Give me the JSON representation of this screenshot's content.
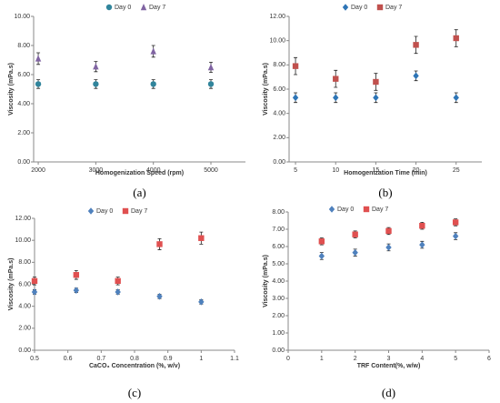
{
  "chart_data": [
    {
      "type": "scatter",
      "caption": "(a)",
      "x_label": "Homogenization Speed (rpm)",
      "y_label": "Viscosity (mPa.s)",
      "legend": "top",
      "grid": false,
      "x": [
        2000,
        3000,
        4000,
        5000
      ],
      "xlim": [
        1920,
        5600
      ],
      "xticks": [
        2000,
        3000,
        4000,
        5000
      ],
      "ylim": [
        0,
        10
      ],
      "yticks": [
        {
          "value": 0,
          "label": "0.00"
        },
        {
          "value": 2,
          "label": "2.00"
        },
        {
          "value": 4,
          "label": "4.00"
        },
        {
          "value": 6,
          "label": "6.00"
        },
        {
          "value": 8,
          "label": "8.00"
        },
        {
          "value": 10,
          "label": "10.00"
        }
      ],
      "series": [
        {
          "name": "Day 0",
          "color": "#31859c",
          "marker": "circle",
          "values": [
            5.35,
            5.35,
            5.35,
            5.35
          ],
          "errors": [
            0.3,
            0.3,
            0.3,
            0.3
          ]
        },
        {
          "name": "Day 7",
          "color": "#8064a2",
          "marker": "triangle",
          "values": [
            7.1,
            6.55,
            7.6,
            6.5
          ],
          "errors": [
            0.4,
            0.35,
            0.4,
            0.35
          ]
        }
      ]
    },
    {
      "type": "scatter",
      "caption": "(b)",
      "x_label": "Homogenization Time (min)",
      "y_label": "Viscosity (mPa.s)",
      "legend": "top",
      "grid": false,
      "x": [
        5,
        10,
        15,
        20,
        25
      ],
      "xlim": [
        4.2,
        28.2
      ],
      "xticks": [
        5,
        10,
        15,
        20,
        25
      ],
      "ylim": [
        0,
        12
      ],
      "yticks": [
        {
          "value": 0,
          "label": "0.00"
        },
        {
          "value": 2,
          "label": "2.00"
        },
        {
          "value": 4,
          "label": "4.00"
        },
        {
          "value": 6,
          "label": "6.00"
        },
        {
          "value": 8,
          "label": "8.00"
        },
        {
          "value": 10,
          "label": "10.00"
        },
        {
          "value": 12,
          "label": "12.00"
        }
      ],
      "series": [
        {
          "name": "Day 0",
          "color": "#2e75b6",
          "marker": "diamond",
          "values": [
            5.3,
            5.3,
            5.3,
            7.1,
            5.3
          ],
          "errors": [
            0.4,
            0.4,
            0.4,
            0.4,
            0.4
          ]
        },
        {
          "name": "Day 7",
          "color": "#c0504d",
          "marker": "square",
          "values": [
            7.9,
            6.85,
            6.6,
            9.65,
            10.2
          ],
          "errors": [
            0.7,
            0.7,
            0.7,
            0.7,
            0.7
          ]
        }
      ]
    },
    {
      "type": "scatter",
      "caption": "(c)",
      "x_label": "CaCO₃ Concentration (%, w/v)",
      "y_label": "Viscosity (mPa.s)",
      "legend": "top",
      "grid": false,
      "x": [
        0.5,
        0.625,
        0.75,
        0.875,
        1.0
      ],
      "xlim": [
        0.5,
        1.1
      ],
      "xticks": [
        0.5,
        0.6,
        0.7,
        0.8,
        0.9,
        1,
        1.1
      ],
      "ylim": [
        0,
        12
      ],
      "yticks": [
        {
          "value": 0,
          "label": "0.00"
        },
        {
          "value": 2,
          "label": "2.00"
        },
        {
          "value": 4,
          "label": "4.00"
        },
        {
          "value": 6,
          "label": "6.00"
        },
        {
          "value": 8,
          "label": "8.00"
        },
        {
          "value": 10,
          "label": "10.00"
        },
        {
          "value": 12,
          "label": "12.00"
        }
      ],
      "series": [
        {
          "name": "Day 0",
          "color": "#4f81bd",
          "marker": "diamond",
          "values": [
            5.3,
            5.45,
            5.3,
            4.9,
            4.4
          ],
          "errors": [
            0.2,
            0.2,
            0.2,
            0.2,
            0.2
          ]
        },
        {
          "name": "Day 7",
          "color": "#e05050",
          "marker": "square",
          "values": [
            6.3,
            6.85,
            6.3,
            9.65,
            10.2
          ],
          "errors": [
            0.35,
            0.4,
            0.35,
            0.5,
            0.55
          ]
        }
      ]
    },
    {
      "type": "scatter",
      "caption": "(d)",
      "x_label": "TRF Content(%, w/w)",
      "y_label": "Viscosity (mPa.s)",
      "legend": "top",
      "grid": false,
      "x": [
        1,
        2,
        3,
        4,
        5
      ],
      "xlim": [
        0,
        6
      ],
      "xticks": [
        0,
        1,
        2,
        3,
        4,
        5,
        6
      ],
      "ylim": [
        0,
        8
      ],
      "yticks": [
        {
          "value": 0,
          "label": "0.00"
        },
        {
          "value": 1,
          "label": "1.00"
        },
        {
          "value": 2,
          "label": "2.00"
        },
        {
          "value": 3,
          "label": "3.00"
        },
        {
          "value": 4,
          "label": "4.00"
        },
        {
          "value": 5,
          "label": "5.00"
        },
        {
          "value": 6,
          "label": "6.00"
        },
        {
          "value": 7,
          "label": "7.00"
        },
        {
          "value": 8,
          "label": "8.00"
        }
      ],
      "series": [
        {
          "name": "Day 0",
          "color": "#4f81bd",
          "marker": "diamond",
          "values": [
            5.45,
            5.65,
            5.95,
            6.1,
            6.6
          ],
          "errors": [
            0.2,
            0.2,
            0.2,
            0.2,
            0.2
          ]
        },
        {
          "name": "Day 7",
          "color": "#e05050",
          "marker": "square",
          "values": [
            6.3,
            6.7,
            6.9,
            7.2,
            7.4
          ],
          "errors": [
            0.2,
            0.2,
            0.2,
            0.2,
            0.2
          ]
        }
      ]
    }
  ]
}
